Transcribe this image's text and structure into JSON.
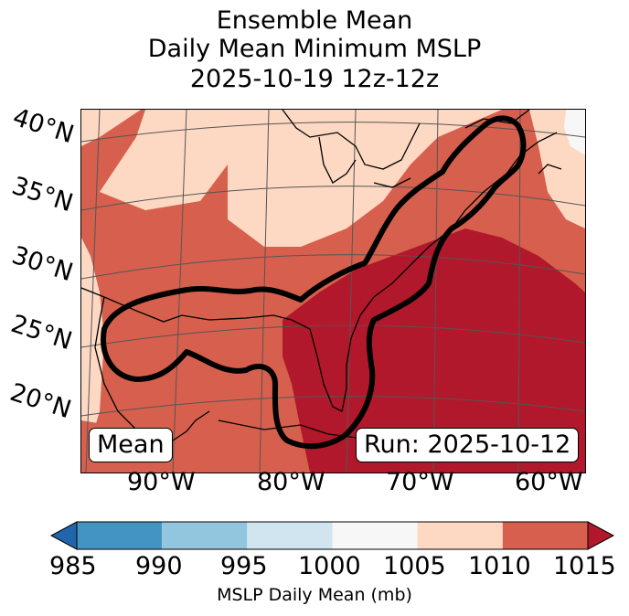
{
  "title": {
    "line1": "Ensemble Mean",
    "line2": "Daily Mean Minimum MSLP",
    "line3": "2025-10-19 12z-12z"
  },
  "map": {
    "lat_labels": [
      "40°N",
      "35°N",
      "30°N",
      "25°N",
      "20°N"
    ],
    "lon_labels": [
      "90°W",
      "80°W",
      "70°W",
      "60°W"
    ],
    "mean_label": "Mean",
    "run_label": "Run: 2025-10-12",
    "field_colors": {
      "1000_1005": "#f7f7f7",
      "1005_1010": "#fdd9c4",
      "1010_1015": "#d6604d",
      "above_1015": "#b2182b"
    }
  },
  "colorbar": {
    "ticks": [
      "985",
      "990",
      "995",
      "1000",
      "1005",
      "1010",
      "1015"
    ],
    "colors": [
      "#2166ac",
      "#4393c3",
      "#92c5de",
      "#d1e5f0",
      "#f7f7f7",
      "#fdd9c4",
      "#d6604d",
      "#b2182b"
    ],
    "label": "MSLP Daily Mean (mb)"
  }
}
